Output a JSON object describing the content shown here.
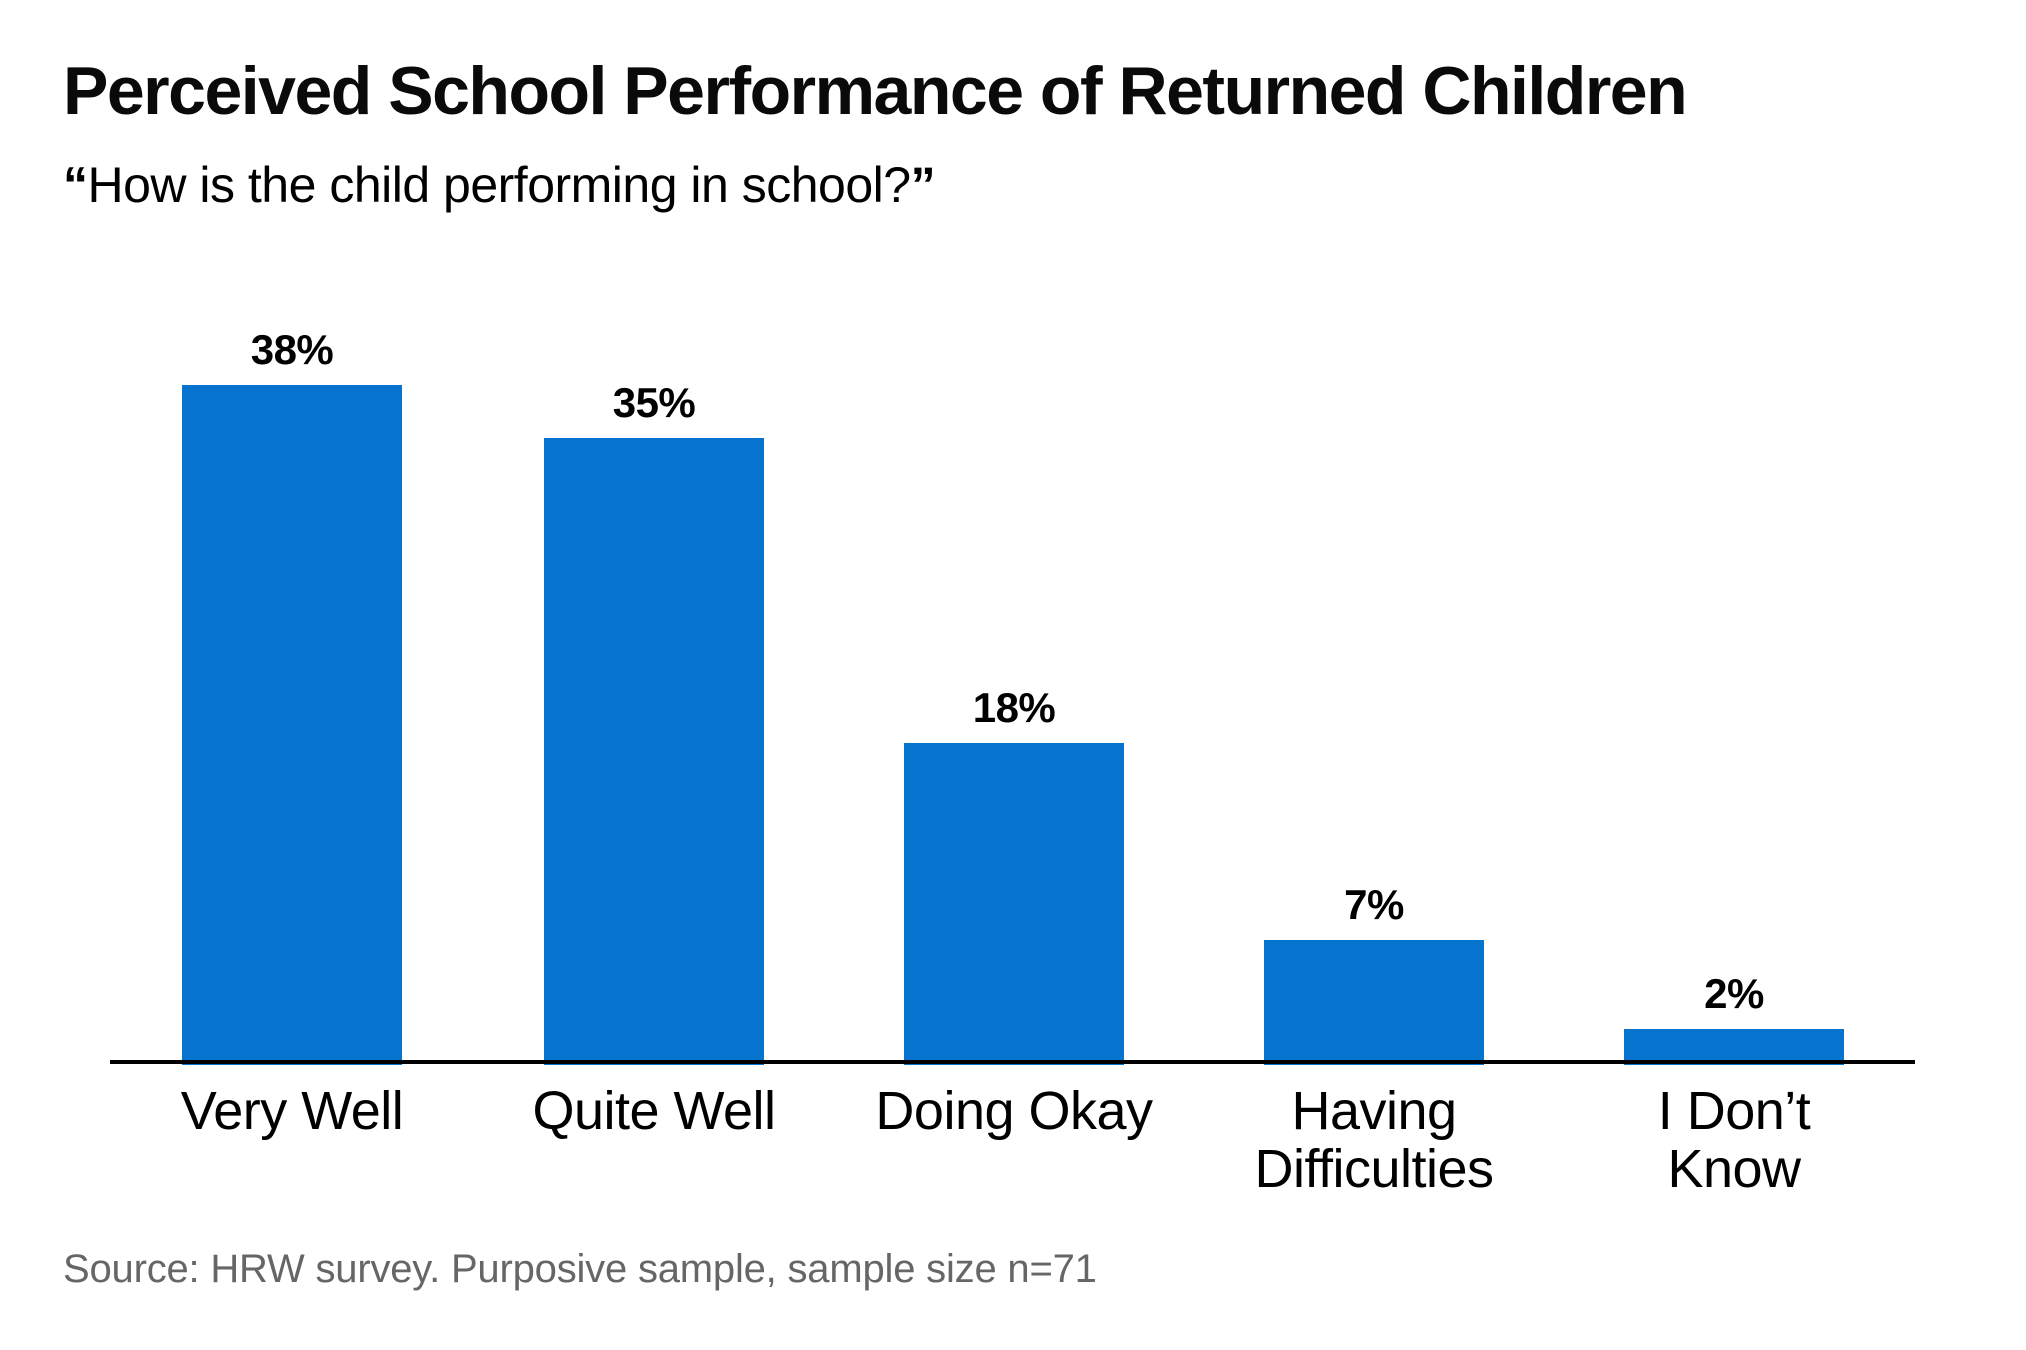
{
  "header": {
    "title": "Perceived School Performance of Returned Children",
    "subtitle_open_quote": "“",
    "subtitle_text": "How is the child performing in school?",
    "subtitle_close_quote": "”"
  },
  "chart_data": {
    "type": "bar",
    "title": "Perceived School Performance of Returned Children",
    "subtitle": "“How is the child performing in school?”",
    "categories": [
      "Very Well",
      "Quite Well",
      "Doing Okay",
      "Having Difficulties",
      "I Don’t Know"
    ],
    "category_lines": [
      [
        "Very Well",
        ""
      ],
      [
        "Quite Well",
        ""
      ],
      [
        "Doing Okay",
        ""
      ],
      [
        "Having",
        "Difficulties"
      ],
      [
        "I Don’t",
        "Know"
      ]
    ],
    "values": [
      38,
      35,
      18,
      7,
      2
    ],
    "value_labels": [
      "38%",
      "35%",
      "18%",
      "7%",
      "2%"
    ],
    "unit": "percent",
    "ylim": [
      0,
      40
    ],
    "grid": false,
    "legend": null,
    "orientation": "vertical",
    "bar_color": "#0673CF",
    "axis_color": "#000000",
    "value_label_color": "#000000",
    "category_label_color": "#000000"
  },
  "footer": {
    "source": "Source: HRW survey. Purposive sample, sample size n=71",
    "source_color": "#666666"
  }
}
